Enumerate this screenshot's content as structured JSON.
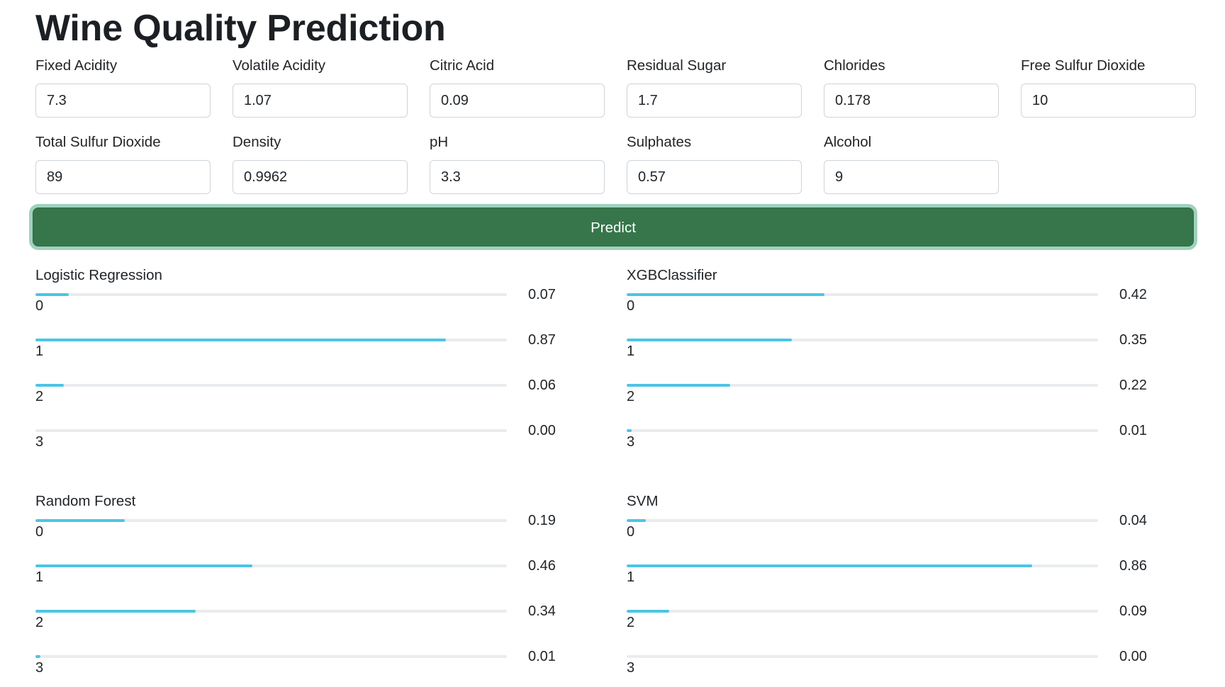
{
  "app": {
    "title": "Wine Quality Prediction"
  },
  "inputs": [
    {
      "label": "Fixed Acidity",
      "value": "7.3"
    },
    {
      "label": "Volatile Acidity",
      "value": "1.07"
    },
    {
      "label": "Citric Acid",
      "value": "0.09"
    },
    {
      "label": "Residual Sugar",
      "value": "1.7"
    },
    {
      "label": "Chlorides",
      "value": "0.178"
    },
    {
      "label": "Free Sulfur Dioxide",
      "value": "10"
    },
    {
      "label": "Total Sulfur Dioxide",
      "value": "89"
    },
    {
      "label": "Density",
      "value": "0.9962"
    },
    {
      "label": "pH",
      "value": "3.3"
    },
    {
      "label": "Sulphates",
      "value": "0.57"
    },
    {
      "label": "Alcohol",
      "value": "9"
    }
  ],
  "predict_button": {
    "label": "Predict"
  },
  "models": [
    {
      "name": "Logistic Regression",
      "classes": [
        {
          "label": "0",
          "value": "0.07",
          "fraction": 0.07
        },
        {
          "label": "1",
          "value": "0.87",
          "fraction": 0.87
        },
        {
          "label": "2",
          "value": "0.06",
          "fraction": 0.06
        },
        {
          "label": "3",
          "value": "0.00",
          "fraction": 0.0
        }
      ]
    },
    {
      "name": "XGBClassifier",
      "classes": [
        {
          "label": "0",
          "value": "0.42",
          "fraction": 0.42
        },
        {
          "label": "1",
          "value": "0.35",
          "fraction": 0.35
        },
        {
          "label": "2",
          "value": "0.22",
          "fraction": 0.22
        },
        {
          "label": "3",
          "value": "0.01",
          "fraction": 0.01
        }
      ]
    },
    {
      "name": "Random Forest",
      "classes": [
        {
          "label": "0",
          "value": "0.19",
          "fraction": 0.19
        },
        {
          "label": "1",
          "value": "0.46",
          "fraction": 0.46
        },
        {
          "label": "2",
          "value": "0.34",
          "fraction": 0.34
        },
        {
          "label": "3",
          "value": "0.01",
          "fraction": 0.01
        }
      ]
    },
    {
      "name": "SVM",
      "classes": [
        {
          "label": "0",
          "value": "0.04",
          "fraction": 0.04
        },
        {
          "label": "1",
          "value": "0.86",
          "fraction": 0.86
        },
        {
          "label": "2",
          "value": "0.09",
          "fraction": 0.09
        },
        {
          "label": "3",
          "value": "0.00",
          "fraction": 0.0
        }
      ]
    }
  ],
  "colors": {
    "button_bg": "#36764a",
    "button_ring": "#9fd2bd",
    "bar_fill": "#4dc4e6",
    "bar_track": "#e9ecef"
  }
}
